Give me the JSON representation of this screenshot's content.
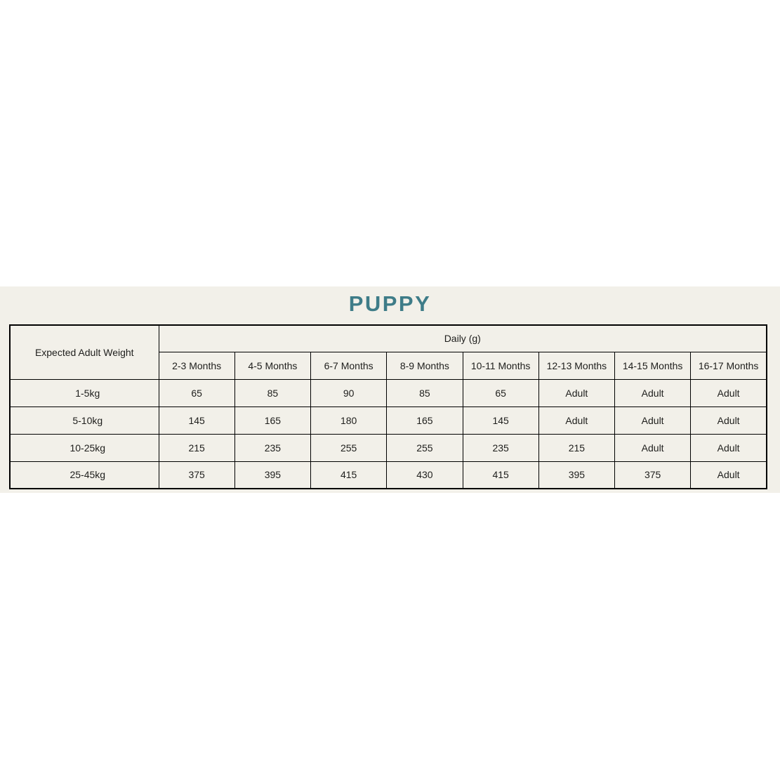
{
  "page": {
    "title": "PUPPY",
    "accent_color": "#3e7c88",
    "band_background": "#f2f0e9"
  },
  "table": {
    "corner_header": "Expected Adult Weight",
    "group_header": "Daily (g)",
    "month_headers": [
      "2-3 Months",
      "4-5 Months",
      "6-7 Months",
      "8-9 Months",
      "10-11 Months",
      "12-13 Months",
      "14-15 Months",
      "16-17 Months"
    ],
    "rows": [
      {
        "weight": "1-5kg",
        "values": [
          "65",
          "85",
          "90",
          "85",
          "65",
          "Adult",
          "Adult",
          "Adult"
        ]
      },
      {
        "weight": "5-10kg",
        "values": [
          "145",
          "165",
          "180",
          "165",
          "145",
          "Adult",
          "Adult",
          "Adult"
        ]
      },
      {
        "weight": "10-25kg",
        "values": [
          "215",
          "235",
          "255",
          "255",
          "235",
          "215",
          "Adult",
          "Adult"
        ]
      },
      {
        "weight": "25-45kg",
        "values": [
          "375",
          "395",
          "415",
          "430",
          "415",
          "395",
          "375",
          "Adult"
        ]
      }
    ]
  }
}
